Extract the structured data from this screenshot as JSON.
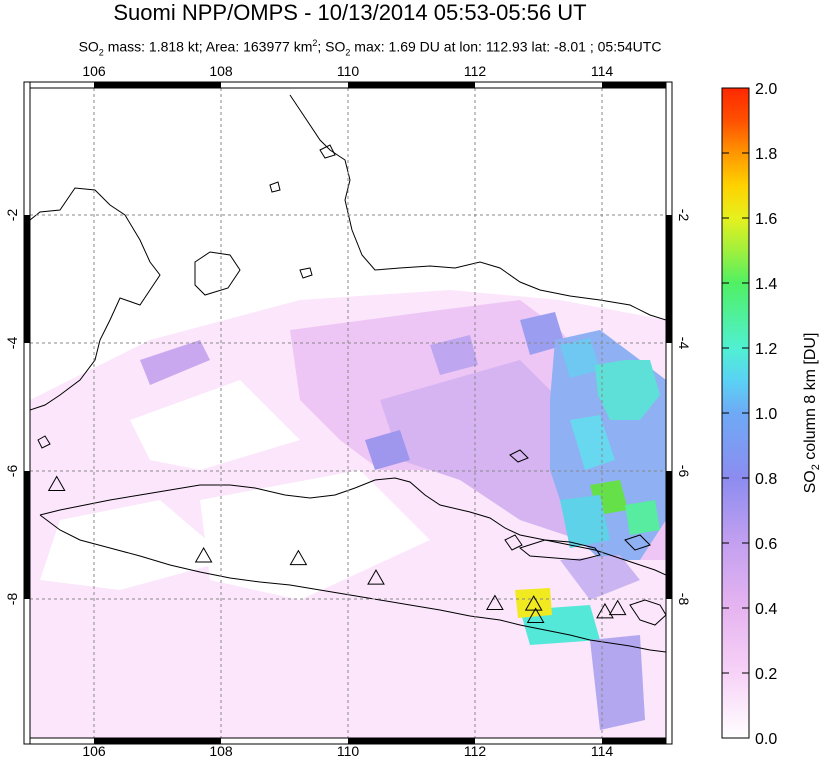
{
  "title": "Suomi NPP/OMPS - 10/13/2014 05:53-05:56 UT",
  "subtitle": {
    "mass_label": "SO",
    "mass_text": " mass: 1.818 kt; Area: 163977 km",
    "area_sup": "2",
    "max_label": "; SO",
    "max_text": " max: 1.69 DU at lon: 112.93 lat: -8.01 ; 05:54UTC",
    "sub": "2"
  },
  "map": {
    "lon_ticks": [
      "106",
      "108",
      "110",
      "112",
      "114"
    ],
    "lat_ticks": [
      "-2",
      "-4",
      "-6",
      "-8"
    ],
    "lon_range": [
      105,
      115
    ],
    "lat_range": [
      -10,
      0
    ],
    "volcano_icon": "triangle-outline-icon",
    "volcanoes": [
      {
        "lon": 105.42,
        "lat": -6.1
      },
      {
        "lon": 107.73,
        "lat": -7.2
      },
      {
        "lon": 109.22,
        "lat": -7.24
      },
      {
        "lon": 110.44,
        "lat": -7.54
      },
      {
        "lon": 112.31,
        "lat": -7.93
      },
      {
        "lon": 112.92,
        "lat": -7.94
      },
      {
        "lon": 112.95,
        "lat": -8.13
      },
      {
        "lon": 114.04,
        "lat": -8.06
      },
      {
        "lon": 114.24,
        "lat": -8.01
      }
    ]
  },
  "colorbar": {
    "label": "SO",
    "label_sub": "2",
    "label_rest": " column 8 km [DU]",
    "ticks": [
      "0.0",
      "0.2",
      "0.4",
      "0.6",
      "0.8",
      "1.0",
      "1.2",
      "1.4",
      "1.6",
      "1.8",
      "2.0"
    ],
    "range": [
      0,
      2
    ],
    "colors": [
      "#ffffff",
      "#f7d2f7",
      "#e6b4f0",
      "#c3a0f0",
      "#8c8cf0",
      "#6eaaf5",
      "#5ad2f5",
      "#50f0d2",
      "#50f064",
      "#a0f03c",
      "#e6f01e",
      "#ffd200",
      "#ff9600",
      "#ff5000",
      "#ff2800"
    ]
  }
}
